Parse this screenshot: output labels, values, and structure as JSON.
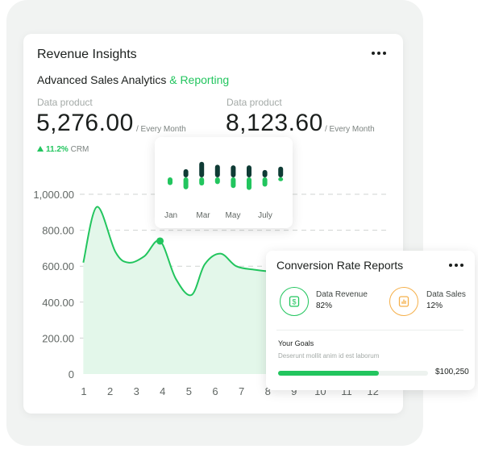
{
  "main_card": {
    "title": "Revenue Insights",
    "subtitle_main": "Advanced Sales Analytics",
    "subtitle_accent": "& Reporting",
    "menu_icon": "more-horizontal-icon",
    "metrics": [
      {
        "label": "Data product",
        "value": "5,276.00",
        "period": "/ Every Month"
      },
      {
        "label": "Data product",
        "value": "8,123.60",
        "period": "/ Every Month"
      }
    ],
    "trend": {
      "icon": "triangle-up-icon",
      "percent": "11.2%",
      "label": "CRM"
    }
  },
  "colors": {
    "accent": "#22c55e",
    "dark_bar": "#0f3b35",
    "area_fill": "#e3f7ea",
    "text": "#1b1f1d"
  },
  "chart_data": [
    {
      "type": "area",
      "x": [
        1,
        2,
        3,
        4,
        5,
        6,
        7,
        8,
        9,
        10,
        11,
        12
      ],
      "x_ticks": [
        "1",
        "2",
        "3",
        "4",
        "5",
        "6",
        "7",
        "8",
        "9",
        "10",
        "11",
        "12"
      ],
      "y_ticks": [
        "0",
        "200.00",
        "400.00",
        "600.00",
        "800.00",
        "1,000.00"
      ],
      "ylim": [
        0,
        1000
      ],
      "grid": true,
      "curve": [
        [
          0.98,
          620
        ],
        [
          1.5,
          930
        ],
        [
          2.2,
          680
        ],
        [
          2.7,
          620
        ],
        [
          3.3,
          655
        ],
        [
          3.9,
          740
        ],
        [
          4.5,
          530
        ],
        [
          5.1,
          440
        ],
        [
          5.6,
          610
        ],
        [
          6.2,
          670
        ],
        [
          6.8,
          600
        ],
        [
          7.5,
          580
        ],
        [
          8.1,
          570
        ]
      ],
      "highlighted_point": {
        "x": 3.9,
        "y": 740
      }
    },
    {
      "type": "bar",
      "x_ticks": [
        "Jan",
        "Mar",
        "May",
        "July"
      ],
      "ylim": [
        -1,
        1
      ],
      "series": [
        {
          "values": [
            0,
            0.42,
            0.8,
            0.65,
            0.62,
            0.62,
            0.38,
            0.55
          ]
        },
        {
          "values": [
            -0.4,
            -0.62,
            -0.42,
            -0.35,
            -0.55,
            -0.65,
            -0.48,
            -0.2
          ]
        }
      ]
    }
  ],
  "conversion_card": {
    "title": "Conversion Rate Reports",
    "menu_icon": "more-horizontal-icon",
    "stats": [
      {
        "label": "Data Revenue",
        "value": "82%",
        "icon": "dollar-icon",
        "color": "#22c55e"
      },
      {
        "label": "Data Sales",
        "value": "12%",
        "icon": "bar-chart-icon",
        "color": "#f5b04b"
      }
    ],
    "goals": {
      "title": "Your Goals",
      "subtitle": "Deserunt mollit anim id est laborum",
      "progress": 0.67,
      "amount": "$100,250"
    }
  }
}
